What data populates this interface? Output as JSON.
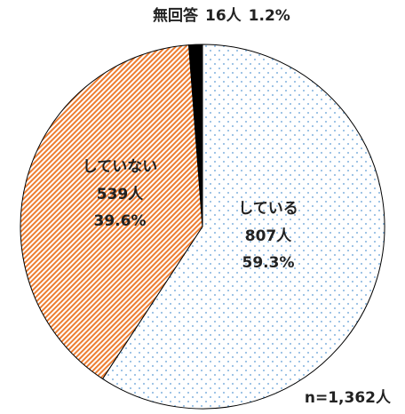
{
  "chart_data": {
    "type": "pie",
    "categories": [
      "している",
      "していない",
      "無回答"
    ],
    "values": [
      59.3,
      39.6,
      1.2
    ],
    "value_labels": [
      "59.3%",
      "39.6%",
      "1.2%"
    ],
    "counts": [
      807,
      539,
      16
    ],
    "count_labels": [
      "807人",
      "539人",
      "16人"
    ],
    "colors": [
      "#5b9bd5",
      "#ed7d31",
      "#000000"
    ],
    "note": "n=1,362人"
  }
}
